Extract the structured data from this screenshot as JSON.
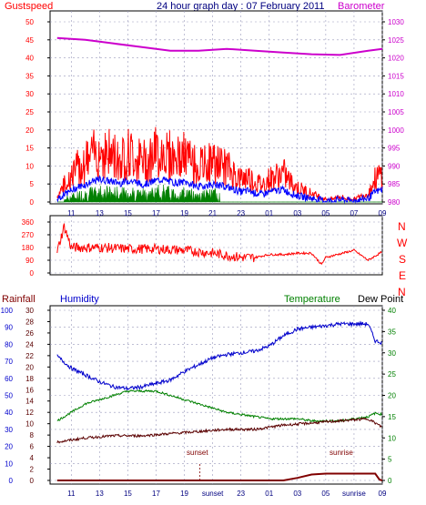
{
  "header": {
    "gust_label": "Gustspeed",
    "title": "24 hour graph day : 07 February 2011",
    "baro_label": "Barometer"
  },
  "wind_dirs": [
    "N",
    "W",
    "S",
    "E",
    "N"
  ],
  "bottom_labels": {
    "rainfall": "Rainfall",
    "humidity": "Humidity",
    "temperature": "Temperature",
    "dewpoint": "Dew Point",
    "sunset": "sunset",
    "sunrise": "sunrise"
  },
  "colors": {
    "gust": "#ff0000",
    "wind": "#0000ff",
    "rain": "#008000",
    "baro": "#cc00cc",
    "title": "#000080",
    "humidity": "#0000cc",
    "temperature": "#008000",
    "dewpoint": "#5a0000",
    "rainfall": "#800000",
    "grid": "#9999bb"
  },
  "x_ticks": [
    "11",
    "13",
    "15",
    "17",
    "19",
    "21",
    "23",
    "01",
    "03",
    "05",
    "07",
    "09"
  ],
  "x_ticks_bottom": [
    "11",
    "13",
    "15",
    "17",
    "19",
    "sunset",
    "23",
    "01",
    "03",
    "05",
    "sunrise",
    "09"
  ],
  "chart_data": [
    {
      "type": "line",
      "name": "wind-baro",
      "left_ticks": [
        "0",
        "5",
        "10",
        "15",
        "20",
        "25",
        "30",
        "35",
        "40",
        "45",
        "50"
      ],
      "right_ticks": [
        "980",
        "985",
        "990",
        "995",
        "1000",
        "1005",
        "1010",
        "1015",
        "1020",
        "1025",
        "1030"
      ],
      "left_ylim": [
        0,
        50
      ],
      "right_ylim": [
        980,
        1030
      ],
      "gust_envelope": {
        "x": [
          10,
          10.5,
          11,
          11.5,
          12,
          12.5,
          13,
          13.5,
          14,
          14.5,
          15,
          15.5,
          16,
          16.5,
          17,
          17.5,
          18,
          18.5,
          19,
          19.5,
          20,
          20.5,
          21,
          21.5,
          22,
          22.5,
          23,
          23.5,
          24,
          24.5,
          25,
          25.5,
          26,
          26.5,
          27,
          27.5,
          28,
          28.5,
          29,
          29.5,
          30,
          30.5,
          31,
          31.5,
          32,
          32.5,
          33
        ],
        "y": [
          2,
          6,
          9,
          12,
          14,
          16,
          18,
          17,
          16,
          15,
          17,
          16,
          14,
          15,
          17,
          18,
          16,
          15,
          16,
          14,
          12,
          13,
          14,
          13,
          12,
          10,
          8,
          9,
          7,
          6,
          8,
          9,
          10,
          7,
          5,
          4,
          3,
          2,
          1,
          1,
          2,
          1,
          1,
          2,
          3,
          8,
          10
        ]
      },
      "baro": {
        "x": [
          10,
          12,
          14,
          16,
          18,
          20,
          22,
          24,
          26,
          28,
          30,
          32,
          33
        ],
        "y": [
          1025.5,
          1025,
          1024,
          1023,
          1022,
          1022,
          1022.5,
          1022,
          1021.5,
          1021,
          1020.8,
          1022,
          1022.5
        ]
      }
    },
    {
      "type": "line",
      "name": "wind-direction",
      "ticks": [
        "0",
        "90",
        "180",
        "270",
        "360"
      ],
      "ylim": [
        0,
        360
      ],
      "x": [
        10,
        10.5,
        11,
        13,
        15,
        17,
        19,
        21,
        23,
        24,
        25,
        26,
        27,
        28,
        28.7,
        29,
        31,
        32,
        33
      ],
      "y": [
        150,
        330,
        180,
        180,
        170,
        170,
        160,
        140,
        110,
        110,
        130,
        130,
        140,
        140,
        60,
        110,
        160,
        90,
        150
      ]
    },
    {
      "type": "line",
      "name": "bottom",
      "left_ticks": [
        "0",
        "10",
        "20",
        "30",
        "40",
        "50",
        "60",
        "70",
        "80",
        "90",
        "100"
      ],
      "mid_ticks": [
        "0",
        "2",
        "4",
        "6",
        "8",
        "10",
        "12",
        "14",
        "16",
        "18",
        "20",
        "22",
        "24",
        "26",
        "28",
        "30"
      ],
      "right_ticks": [
        "0",
        "5",
        "10",
        "15",
        "20",
        "25",
        "30",
        "35",
        "40"
      ],
      "humidity": {
        "x": [
          10,
          11,
          12,
          13,
          14,
          15,
          16,
          17,
          18,
          19,
          20,
          21,
          22,
          23,
          24,
          25,
          26,
          27,
          28,
          29,
          30,
          31,
          32,
          32.5,
          33
        ],
        "y": [
          73,
          66,
          62,
          58,
          55,
          54,
          55,
          57,
          59,
          64,
          68,
          72,
          74,
          75,
          76,
          79,
          85,
          89,
          90,
          91,
          92,
          92,
          92,
          82,
          81
        ]
      },
      "temperature": {
        "x": [
          10,
          11,
          12,
          13,
          14,
          15,
          16,
          17,
          18,
          19,
          20,
          21,
          22,
          23,
          24,
          25,
          26,
          27,
          28,
          29,
          30,
          31,
          32,
          32.5,
          33
        ],
        "y": [
          14,
          16,
          18,
          19,
          20,
          21,
          21,
          21,
          20,
          19,
          18,
          17,
          16,
          15.5,
          15,
          14.5,
          14.5,
          14.5,
          14,
          14,
          14,
          14.5,
          15,
          15.8,
          15.5
        ]
      },
      "dewpoint": {
        "x": [
          10,
          12,
          14,
          16,
          18,
          20,
          22,
          24,
          26,
          28,
          30,
          32,
          32.5,
          33
        ],
        "y": [
          9,
          10,
          10.5,
          10.5,
          11,
          11.5,
          12,
          12,
          13,
          13.5,
          14,
          14.5,
          13.5,
          12.5
        ]
      },
      "rainfall": {
        "x": [
          10,
          26,
          27,
          28,
          29,
          32.5,
          32.8,
          33
        ],
        "y": [
          0,
          0,
          0.6,
          1.4,
          1.6,
          1.6,
          0.2,
          0
        ]
      }
    }
  ]
}
